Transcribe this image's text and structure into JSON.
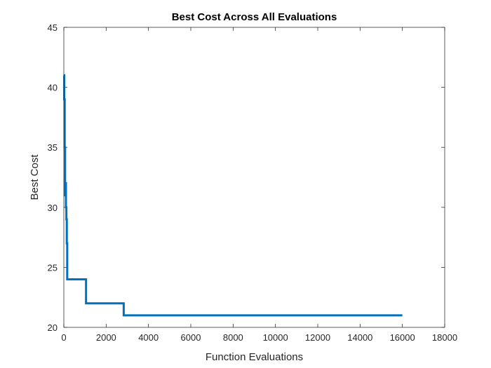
{
  "chart_data": {
    "type": "line",
    "title": "Best Cost Across All Evaluations",
    "xlabel": "Function Evaluations",
    "ylabel": "Best Cost",
    "xlim": [
      0,
      18000
    ],
    "ylim": [
      20,
      45
    ],
    "x_ticks": [
      0,
      2000,
      4000,
      6000,
      8000,
      10000,
      12000,
      14000,
      16000,
      18000
    ],
    "y_ticks": [
      20,
      25,
      30,
      35,
      40,
      45
    ],
    "x_tick_labels": [
      "0",
      "2000",
      "4000",
      "6000",
      "8000",
      "10000",
      "12000",
      "14000",
      "16000",
      "18000"
    ],
    "y_tick_labels": [
      "20",
      "25",
      "30",
      "35",
      "40",
      "45"
    ],
    "grid": false,
    "box": true,
    "series": [
      {
        "color": "#0072BD",
        "step": true,
        "x": [
          0,
          20,
          40,
          60,
          80,
          100,
          120,
          140,
          160,
          180,
          1050,
          2830,
          16000
        ],
        "y": [
          41,
          39,
          35,
          31,
          32,
          30,
          29,
          27,
          24,
          24,
          22,
          21,
          21
        ]
      }
    ]
  }
}
